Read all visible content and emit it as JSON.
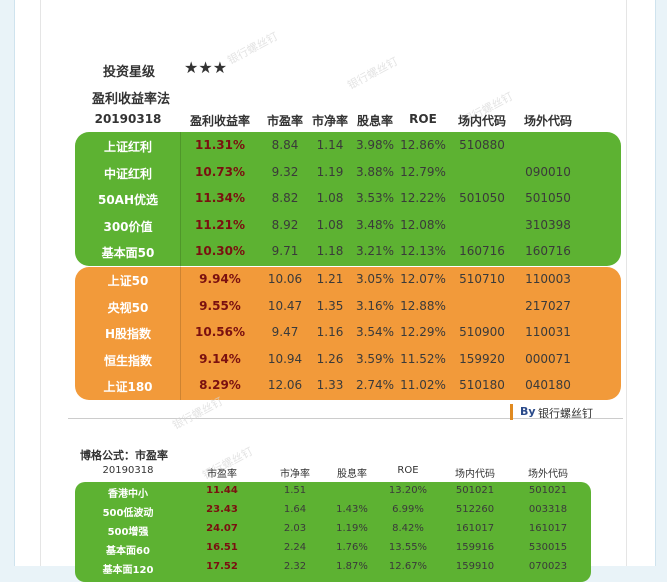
{
  "header": {
    "rating_label": "投资星级",
    "rating": "★★★",
    "method": "盈利收益率法"
  },
  "table1": {
    "columns": [
      "20190318",
      "盈利收益率",
      "市盈率",
      "市净率",
      "股息率",
      "ROE",
      "场内代码",
      "场外代码"
    ],
    "rows": [
      [
        "上证红利",
        "11.31%",
        "8.84",
        "1.14",
        "3.98%",
        "12.86%",
        "510880",
        null
      ],
      [
        "中证红利",
        "10.73%",
        "9.32",
        "1.19",
        "3.88%",
        "12.79%",
        null,
        "090010"
      ],
      [
        "50AH优选",
        "11.34%",
        "8.82",
        "1.08",
        "3.53%",
        "12.22%",
        "501050",
        "501050"
      ],
      [
        "300价值",
        "11.21%",
        "8.92",
        "1.08",
        "3.48%",
        "12.08%",
        null,
        "310398"
      ],
      [
        "基本面50",
        "10.30%",
        "9.71",
        "1.18",
        "3.21%",
        "12.13%",
        "160716",
        "160716"
      ],
      [
        "上证50",
        "9.94%",
        "10.06",
        "1.21",
        "3.05%",
        "12.07%",
        "510710",
        "110003"
      ],
      [
        "央视50",
        "9.55%",
        "10.47",
        "1.35",
        "3.16%",
        "12.88%",
        null,
        "217027"
      ],
      [
        "H股指数",
        "10.56%",
        "9.47",
        "1.16",
        "3.54%",
        "12.29%",
        "510900",
        "110031"
      ],
      [
        "恒生指数",
        "9.14%",
        "10.94",
        "1.26",
        "3.59%",
        "11.52%",
        "159920",
        "000071"
      ],
      [
        "上证180",
        "8.29%",
        "12.06",
        "1.33",
        "2.74%",
        "11.02%",
        "510180",
        "040180"
      ]
    ]
  },
  "brand": {
    "prefix": "By",
    "name": "银行螺丝钉"
  },
  "table2": {
    "title": "博格公式：市盈率",
    "columns": [
      "20190318",
      "市盈率",
      "市净率",
      "股息率",
      "ROE",
      "场内代码",
      "场外代码"
    ],
    "rows": [
      [
        "香港中小",
        "11.44",
        "1.51",
        null,
        "13.20%",
        "501021",
        "501021"
      ],
      [
        "500低波动",
        "23.43",
        "1.64",
        "1.43%",
        "6.99%",
        "512260",
        "003318"
      ],
      [
        "500增强",
        "24.07",
        "2.03",
        "1.19%",
        "8.42%",
        "161017",
        "161017"
      ],
      [
        "基本面60",
        "16.51",
        "2.24",
        "1.76%",
        "13.55%",
        "159916",
        "530015"
      ],
      [
        "基本面120",
        "17.52",
        "2.32",
        "1.87%",
        "12.67%",
        "159910",
        "070023"
      ]
    ]
  },
  "watermark": "银行螺丝钉"
}
